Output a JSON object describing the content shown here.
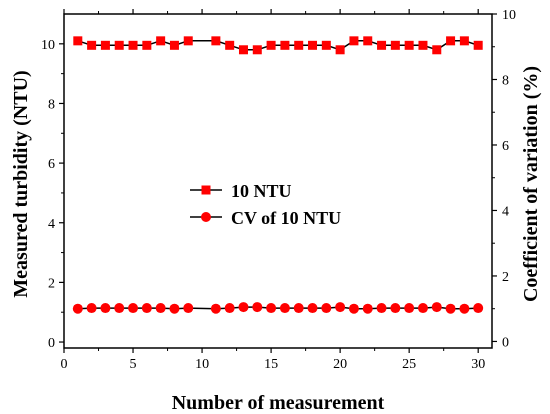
{
  "chart_data": {
    "type": "line",
    "xlabel": "Number of measurement",
    "ylabel": "Measured turbidity (NTU)",
    "y2label": "Coefficient of variation (%)",
    "xlim": [
      0,
      31
    ],
    "ylim": [
      -0.2,
      11
    ],
    "y2lim": [
      -0.2,
      10
    ],
    "x_ticks": [
      0,
      5,
      10,
      15,
      20,
      25,
      30
    ],
    "y_ticks": [
      0,
      2,
      4,
      6,
      8,
      10
    ],
    "y2_ticks": [
      0,
      2,
      4,
      6,
      8,
      10
    ],
    "legend_position": "center-left",
    "colors": {
      "series": "#ff0000",
      "line": "#000000",
      "axis": "#000000"
    },
    "x": [
      1,
      2,
      3,
      4,
      5,
      6,
      7,
      8,
      9,
      10,
      11,
      12,
      13,
      14,
      15,
      16,
      17,
      18,
      19,
      20,
      21,
      22,
      23,
      24,
      25,
      26,
      27,
      28,
      29,
      30
    ],
    "series": [
      {
        "name": "10 NTU",
        "axis": "left",
        "marker": "square",
        "values": [
          10.1,
          9.95,
          9.95,
          9.95,
          9.95,
          9.95,
          10.1,
          9.95,
          10.1,
          null,
          10.1,
          9.95,
          9.8,
          9.8,
          9.95,
          9.95,
          9.95,
          9.95,
          9.95,
          9.8,
          10.1,
          10.1,
          9.95,
          9.95,
          9.95,
          9.95,
          9.8,
          10.1,
          10.1,
          9.95
        ]
      },
      {
        "name": "CV of 10 NTU",
        "axis": "right",
        "marker": "circle",
        "values": [
          1.0,
          1.02,
          1.02,
          1.02,
          1.02,
          1.02,
          1.02,
          1.0,
          1.02,
          null,
          1.0,
          1.02,
          1.05,
          1.05,
          1.02,
          1.02,
          1.02,
          1.02,
          1.02,
          1.05,
          1.0,
          1.0,
          1.02,
          1.02,
          1.02,
          1.02,
          1.05,
          1.0,
          1.0,
          1.02
        ]
      }
    ]
  }
}
